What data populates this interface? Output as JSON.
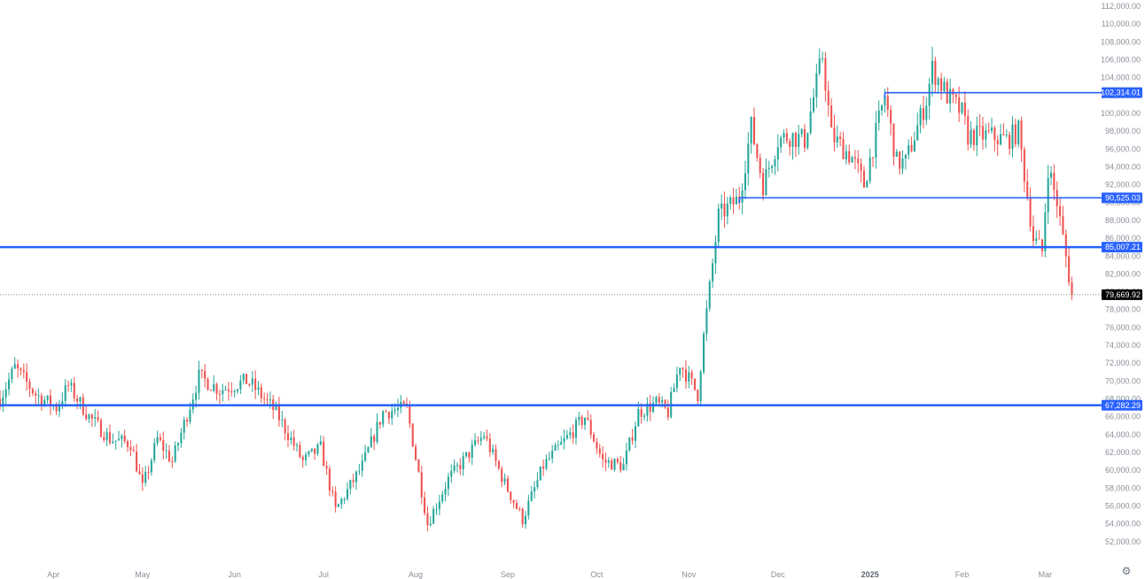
{
  "chart_data": {
    "type": "candlestick",
    "y_axis": {
      "min": 50000,
      "max": 112000,
      "ticks": [
        "52,000.00",
        "54,000.00",
        "56,000.00",
        "58,000.00",
        "60,000.00",
        "62,000.00",
        "64,000.00",
        "66,000.00",
        "68,000.00",
        "70,000.00",
        "72,000.00",
        "74,000.00",
        "76,000.00",
        "78,000.00",
        "80,000.00",
        "82,000.00",
        "84,000.00",
        "86,000.00",
        "88,000.00",
        "90,000.00",
        "92,000.00",
        "94,000.00",
        "96,000.00",
        "98,000.00",
        "100,000.00",
        "102,000.00",
        "104,000.00",
        "106,000.00",
        "108,000.00",
        "110,000.00",
        "112,000.00"
      ]
    },
    "x_axis": {
      "start": "2024-03-14",
      "end": "2025-03-20",
      "labels": [
        {
          "date": "2024-04-01",
          "text": "Apr"
        },
        {
          "date": "2024-05-01",
          "text": "May"
        },
        {
          "date": "2024-06-01",
          "text": "Jun"
        },
        {
          "date": "2024-07-01",
          "text": "Jul"
        },
        {
          "date": "2024-08-01",
          "text": "Aug"
        },
        {
          "date": "2024-09-01",
          "text": "Sep"
        },
        {
          "date": "2024-10-01",
          "text": "Oct"
        },
        {
          "date": "2024-11-01",
          "text": "Nov"
        },
        {
          "date": "2024-12-01",
          "text": "Dec"
        },
        {
          "date": "2025-01-01",
          "text": "2025",
          "bold": true
        },
        {
          "date": "2025-02-01",
          "text": "Feb"
        },
        {
          "date": "2025-03-01",
          "text": "Mar"
        }
      ]
    },
    "levels": [
      {
        "value": 102314.01,
        "label": "102,314.01",
        "from": "2025-01-06",
        "weight": "thin"
      },
      {
        "value": 90525.03,
        "label": "90,525.03",
        "from": "2024-11-18",
        "weight": "thin"
      },
      {
        "value": 85007.21,
        "label": "85,007.21",
        "from": "2024-03-14",
        "weight": "thick"
      },
      {
        "value": 67282.29,
        "label": "67,282.29",
        "from": "2024-03-14",
        "weight": "thick"
      }
    ],
    "last_price": {
      "value": 79669.92,
      "label": "79,669.92"
    },
    "colors": {
      "up": "#26a69a",
      "down": "#ef5350",
      "level": "#2962ff",
      "axis_text": "#8a8f98",
      "last_bg": "#000000"
    },
    "anchors": [
      [
        "2024-03-14",
        68000
      ],
      [
        "2024-03-19",
        71500
      ],
      [
        "2024-03-26",
        68500
      ],
      [
        "2024-04-02",
        67000
      ],
      [
        "2024-04-06",
        69500
      ],
      [
        "2024-04-13",
        66000
      ],
      [
        "2024-04-20",
        63500
      ],
      [
        "2024-04-27",
        63000
      ],
      [
        "2024-05-01",
        58000
      ],
      [
        "2024-05-06",
        63500
      ],
      [
        "2024-05-11",
        61000
      ],
      [
        "2024-05-20",
        70500
      ],
      [
        "2024-05-27",
        69000
      ],
      [
        "2024-06-05",
        70000
      ],
      [
        "2024-06-07",
        69500
      ],
      [
        "2024-06-15",
        66500
      ],
      [
        "2024-06-24",
        61000
      ],
      [
        "2024-06-30",
        62500
      ],
      [
        "2024-07-05",
        55500
      ],
      [
        "2024-07-14",
        60500
      ],
      [
        "2024-07-21",
        66500
      ],
      [
        "2024-07-29",
        67000
      ],
      [
        "2024-08-05",
        54000
      ],
      [
        "2024-08-12",
        59000
      ],
      [
        "2024-08-24",
        64000
      ],
      [
        "2024-08-31",
        58500
      ],
      [
        "2024-09-06",
        54500
      ],
      [
        "2024-09-13",
        60500
      ],
      [
        "2024-09-27",
        66000
      ],
      [
        "2024-10-03",
        61000
      ],
      [
        "2024-10-10",
        60500
      ],
      [
        "2024-10-15",
        66500
      ],
      [
        "2024-10-21",
        67500
      ],
      [
        "2024-10-25",
        66500
      ],
      [
        "2024-10-29",
        72000
      ],
      [
        "2024-11-04",
        68500
      ],
      [
        "2024-11-06",
        75000
      ],
      [
        "2024-11-11",
        88500
      ],
      [
        "2024-11-18",
        90500
      ],
      [
        "2024-11-22",
        98500
      ],
      [
        "2024-11-26",
        92000
      ],
      [
        "2024-12-01",
        97000
      ],
      [
        "2024-12-05",
        97500
      ],
      [
        "2024-12-10",
        97000
      ],
      [
        "2024-12-16",
        106500
      ],
      [
        "2024-12-19",
        97500
      ],
      [
        "2024-12-26",
        95000
      ],
      [
        "2024-12-30",
        92000
      ],
      [
        "2025-01-06",
        102000
      ],
      [
        "2025-01-10",
        94500
      ],
      [
        "2025-01-13",
        94500
      ],
      [
        "2025-01-20",
        101500
      ],
      [
        "2025-01-22",
        105000
      ],
      [
        "2025-01-27",
        102000
      ],
      [
        "2025-02-01",
        100000
      ],
      [
        "2025-02-03",
        97500
      ],
      [
        "2025-02-10",
        97500
      ],
      [
        "2025-02-16",
        97000
      ],
      [
        "2025-02-20",
        98000
      ],
      [
        "2025-02-25",
        86000
      ],
      [
        "2025-02-28",
        84500
      ],
      [
        "2025-03-02",
        94000
      ],
      [
        "2025-03-05",
        90000
      ],
      [
        "2025-03-07",
        86000
      ],
      [
        "2025-03-10",
        79669.92
      ]
    ]
  }
}
